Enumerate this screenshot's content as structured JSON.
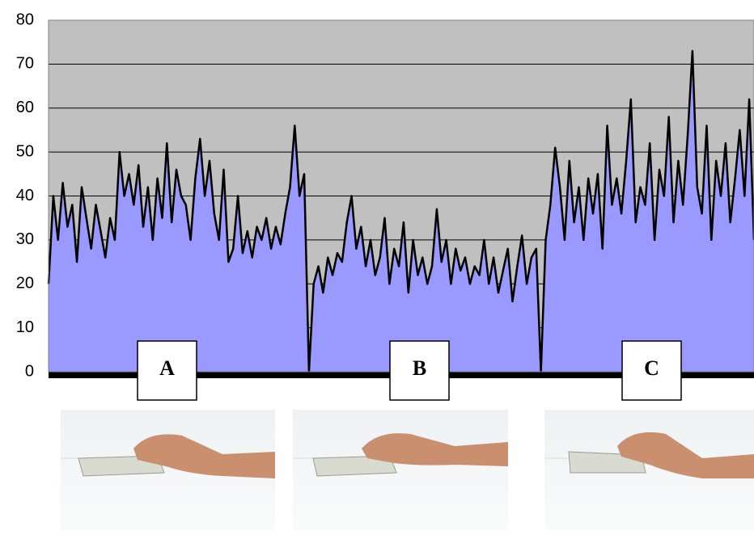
{
  "chart_data": {
    "type": "area",
    "values": [
      20,
      40,
      30,
      43,
      33,
      38,
      25,
      42,
      35,
      28,
      38,
      32,
      26,
      35,
      30,
      50,
      40,
      45,
      38,
      47,
      33,
      42,
      30,
      44,
      35,
      52,
      34,
      46,
      40,
      38,
      30,
      44,
      53,
      40,
      48,
      36,
      30,
      46,
      25,
      28,
      40,
      27,
      32,
      26,
      33,
      30,
      35,
      28,
      33,
      29,
      36,
      42,
      56,
      40,
      45,
      0,
      20,
      24,
      18,
      26,
      22,
      27,
      25,
      34,
      40,
      28,
      33,
      24,
      30,
      22,
      26,
      35,
      20,
      28,
      24,
      34,
      18,
      30,
      22,
      26,
      20,
      24,
      37,
      25,
      30,
      20,
      28,
      23,
      26,
      20,
      24,
      22,
      30,
      20,
      26,
      18,
      23,
      28,
      16,
      24,
      31,
      20,
      26,
      28,
      0,
      30,
      38,
      51,
      42,
      30,
      48,
      34,
      42,
      30,
      44,
      36,
      45,
      28,
      56,
      38,
      44,
      36,
      48,
      62,
      34,
      42,
      38,
      52,
      30,
      46,
      40,
      58,
      34,
      48,
      38,
      54,
      73,
      42,
      36,
      56,
      30,
      48,
      40,
      52,
      34,
      44,
      55,
      40,
      62,
      30
    ],
    "color": "#9999ff",
    "line_color": "#000000",
    "background": "#c0c0c0",
    "ylim": [
      0,
      80
    ],
    "yticks": [
      0,
      10,
      20,
      30,
      40,
      50,
      60,
      70,
      80
    ],
    "grid": true,
    "annotations": [
      "A",
      "B",
      "C"
    ]
  }
}
